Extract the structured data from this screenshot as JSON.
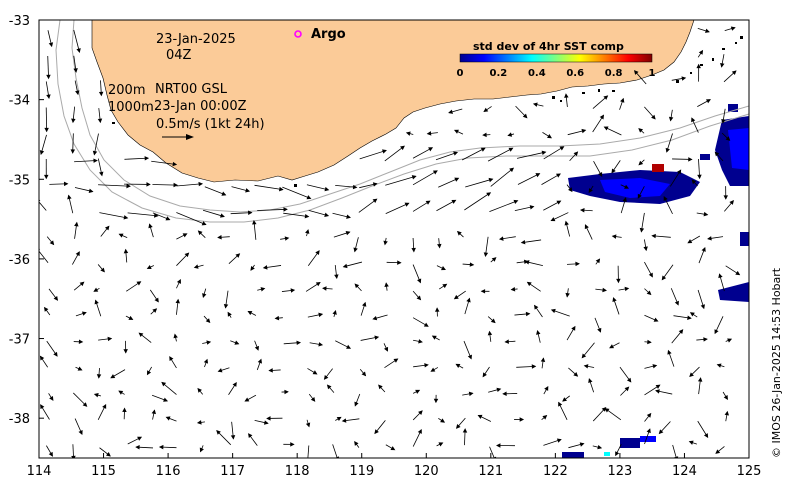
{
  "map": {
    "lon_range": [
      114,
      125
    ],
    "lat_range": [
      -38.5,
      -33
    ],
    "lon_ticks": [
      "114",
      "115",
      "116",
      "117",
      "118",
      "119",
      "120",
      "121",
      "122",
      "123",
      "124",
      "125"
    ],
    "lat_ticks": [
      "-33",
      "-34",
      "-35",
      "-36",
      "-37",
      "-38"
    ],
    "land_color": "#fbcb98",
    "vector_color": "#000000",
    "contour_color": "#aaaaaa"
  },
  "annotations": {
    "date": "23-Jan-2025",
    "hour": "04Z",
    "contour_200": "200m",
    "contour_1000": "1000m",
    "product": "NRT00 GSL",
    "product_time": "23-Jan 00:00Z",
    "scale_label": "0.5m/s (1kt 24h)"
  },
  "legend": {
    "argo_label": "Argo",
    "argo_marker_color": "#ff00ff"
  },
  "colorbar": {
    "title": "std dev of 4hr SST comp",
    "ticks": [
      "0",
      "0.2",
      "0.4",
      "0.6",
      "0.8",
      "1"
    ],
    "range": [
      0,
      1
    ]
  },
  "credit": "© IMOS 26-Jan-2025 14:53 Hobart"
}
